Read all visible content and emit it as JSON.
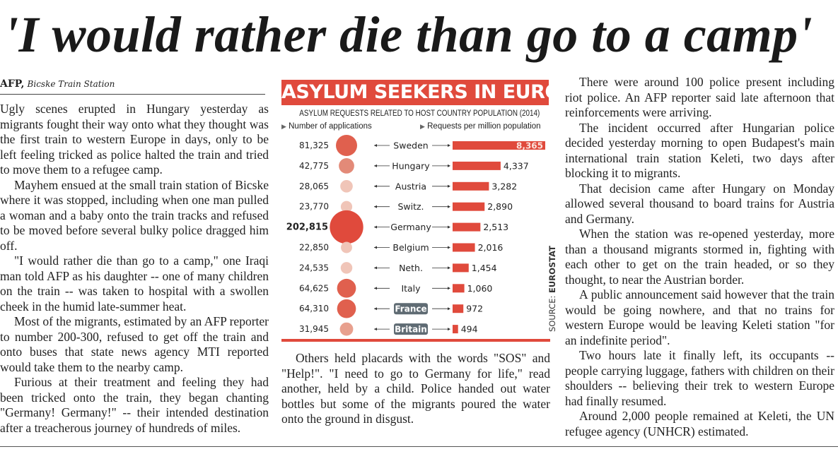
{
  "headline": "'I would rather die than go to a camp'",
  "byline": {
    "agency": "AFP,",
    "place": "Bicske Train Station"
  },
  "column1": [
    "Ugly scenes erupted in Hungary yesterday as migrants fought their way onto what they thought was the first train to western Europe in days, only to be left feeling tricked as police halted the train and tried to move them to a refugee camp.",
    "Mayhem ensued at the small train station of Bicske where it was stopped, including when one man pulled a woman and a baby onto the train tracks and refused to be moved before several bulky police dragged him off.",
    "\"I would rather die than go to a camp,\" one Iraqi man told AFP as his daughter -- one of many children on the train -- was taken to hospital with a swollen cheek in the humid late-summer heat.",
    "Most of the migrants, estimated by an AFP reporter to number 200-300, refused to get off the train and onto buses that state news agency MTI reported would take them to the nearby camp.",
    "Furious at their treatment and feeling they had been tricked onto the train, they began chanting \"Germany! Germany!\" -- their intended destination after a treacherous journey of hundreds of miles."
  ],
  "column2": [
    "Others held placards with the words \"SOS\" and \"Help!\". \"I need to go to Germany for life,\" read another, held by a child. Police handed out water bottles but some of the migrants poured the water onto the ground in disgust."
  ],
  "column3": [
    "There were around 100 police present including riot police. An AFP reporter said late afternoon that reinforcements were arriving.",
    "The incident occurred after Hungarian police decided yesterday morning to open Budapest's main international train station Keleti, two days after blocking it to migrants.",
    "That decision came after Hungary on Monday allowed several thousand to board trains for Austria and Germany.",
    "When the station was re-opened yesterday, more than a thousand migrants stormed in, fighting with each other to get on the train headed, or so they thought, to near the Austrian border.",
    "A public announcement said however that the train would be going nowhere, and that no trains for western Europe would be leaving Keleti station \"for an indefinite period\".",
    "Two hours late it finally left, its occupants -- people carrying luggage, fathers with children on their shoulders -- believing their trek to western Europe had finally resumed.",
    "Around 2,000 people remained at Keleti, the UN refugee agency (UNHCR) estimated."
  ],
  "chart_data": {
    "type": "bar",
    "title": "ASYLUM SEEKERS IN EUROPE",
    "subtitle": "ASYLUM REQUESTS RELATED TO HOST COUNTRY POPULATION (2014)",
    "legend_left": "Number of applications",
    "legend_right": "Requests per million population",
    "source_label": "SOURCE: ",
    "source_name": "EUROSTAT",
    "categories": [
      "Sweden",
      "Hungary",
      "Austria",
      "Switz.",
      "Germany",
      "Belgium",
      "Neth.",
      "Italy",
      "France",
      "Britain"
    ],
    "applications_labels": [
      "81,325",
      "42,775",
      "28,065",
      "23,770",
      "202,815",
      "22,850",
      "24,535",
      "64,625",
      "64,310",
      "31,945"
    ],
    "applications": [
      81325,
      42775,
      28065,
      23770,
      202815,
      22850,
      24535,
      64625,
      64310,
      31945
    ],
    "per_million_labels": [
      "8,365",
      "4,337",
      "3,282",
      "2,890",
      "2,513",
      "2,016",
      "1,454",
      "1,060",
      "972",
      "494"
    ],
    "per_million": [
      8365,
      4337,
      3282,
      2890,
      2513,
      2016,
      1454,
      1060,
      972,
      494
    ],
    "highlighted": [
      "France",
      "Britain"
    ],
    "colors": {
      "bar": "#e04a3c",
      "title_bg": "#e04a3c",
      "highlight_box": "#5f6b73"
    }
  }
}
